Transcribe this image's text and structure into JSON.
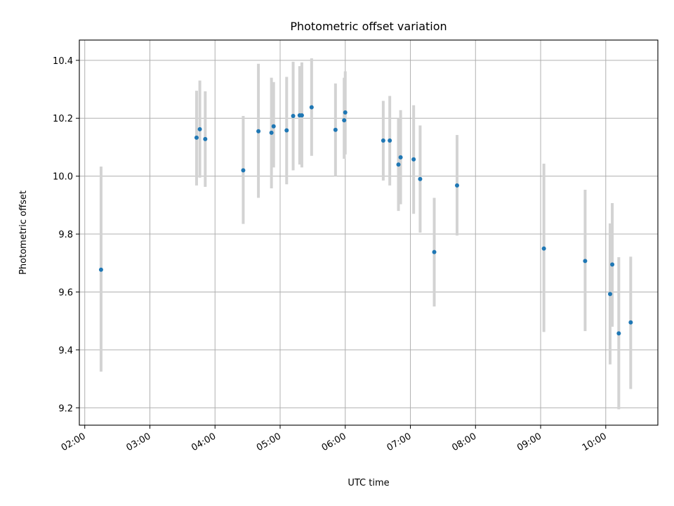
{
  "chart_data": {
    "type": "scatter",
    "title": "Photometric offset variation",
    "xlabel": "UTC time",
    "ylabel": "Photometric offset",
    "x_tick_labels": [
      "02:00",
      "03:00",
      "04:00",
      "05:00",
      "06:00",
      "07:00",
      "08:00",
      "09:00",
      "10:00"
    ],
    "x_ticks": [
      "02:00",
      "03:00",
      "04:00",
      "05:00",
      "06:00",
      "07:00",
      "08:00",
      "09:00",
      "10:00"
    ],
    "y_tick_labels": [
      "9.2",
      "9.4",
      "9.6",
      "9.8",
      "10.0",
      "10.2",
      "10.4"
    ],
    "y_ticks": [
      9.2,
      9.4,
      9.6,
      9.8,
      10.0,
      10.2,
      10.4
    ],
    "xlim": [
      "01:55",
      "10:48"
    ],
    "ylim": [
      9.14,
      10.47
    ],
    "grid": true,
    "marker_color": "#1f77b4",
    "errorbar_color": "#d3d3d3",
    "points": [
      {
        "t": "02:15",
        "y": 9.677,
        "lo": 9.325,
        "hi": 10.033
      },
      {
        "t": "03:43",
        "y": 10.133,
        "lo": 9.968,
        "hi": 10.295
      },
      {
        "t": "03:46",
        "y": 10.162,
        "lo": 9.995,
        "hi": 10.33
      },
      {
        "t": "03:51",
        "y": 10.128,
        "lo": 9.963,
        "hi": 10.293
      },
      {
        "t": "04:26",
        "y": 10.02,
        "lo": 9.835,
        "hi": 10.208
      },
      {
        "t": "04:40",
        "y": 10.155,
        "lo": 9.925,
        "hi": 10.388
      },
      {
        "t": "04:52",
        "y": 10.15,
        "lo": 9.958,
        "hi": 10.34
      },
      {
        "t": "04:54",
        "y": 10.172,
        "lo": 10.03,
        "hi": 10.325
      },
      {
        "t": "05:06",
        "y": 10.158,
        "lo": 9.972,
        "hi": 10.343
      },
      {
        "t": "05:12",
        "y": 10.208,
        "lo": 10.02,
        "hi": 10.395
      },
      {
        "t": "05:18",
        "y": 10.21,
        "lo": 10.04,
        "hi": 10.38
      },
      {
        "t": "05:20",
        "y": 10.21,
        "lo": 10.03,
        "hi": 10.393
      },
      {
        "t": "05:29",
        "y": 10.238,
        "lo": 10.07,
        "hi": 10.407
      },
      {
        "t": "05:51",
        "y": 10.16,
        "lo": 10.0,
        "hi": 10.32
      },
      {
        "t": "05:59",
        "y": 10.193,
        "lo": 10.06,
        "hi": 10.34
      },
      {
        "t": "06:00",
        "y": 10.22,
        "lo": 10.075,
        "hi": 10.362
      },
      {
        "t": "06:35",
        "y": 10.123,
        "lo": 9.985,
        "hi": 10.26
      },
      {
        "t": "06:41",
        "y": 10.123,
        "lo": 9.968,
        "hi": 10.277
      },
      {
        "t": "06:49",
        "y": 10.04,
        "lo": 9.88,
        "hi": 10.2
      },
      {
        "t": "06:51",
        "y": 10.065,
        "lo": 9.903,
        "hi": 10.228
      },
      {
        "t": "07:03",
        "y": 10.058,
        "lo": 9.87,
        "hi": 10.245
      },
      {
        "t": "07:09",
        "y": 9.99,
        "lo": 9.805,
        "hi": 10.175
      },
      {
        "t": "07:22",
        "y": 9.738,
        "lo": 9.55,
        "hi": 9.925
      },
      {
        "t": "07:43",
        "y": 9.968,
        "lo": 9.795,
        "hi": 10.142
      },
      {
        "t": "09:03",
        "y": 9.75,
        "lo": 9.462,
        "hi": 10.043
      },
      {
        "t": "09:41",
        "y": 9.707,
        "lo": 9.465,
        "hi": 9.953
      },
      {
        "t": "10:04",
        "y": 9.593,
        "lo": 9.35,
        "hi": 9.837
      },
      {
        "t": "10:06",
        "y": 9.695,
        "lo": 9.48,
        "hi": 9.907
      },
      {
        "t": "10:12",
        "y": 9.457,
        "lo": 9.195,
        "hi": 9.72
      },
      {
        "t": "10:23",
        "y": 9.495,
        "lo": 9.265,
        "hi": 9.722
      }
    ]
  }
}
